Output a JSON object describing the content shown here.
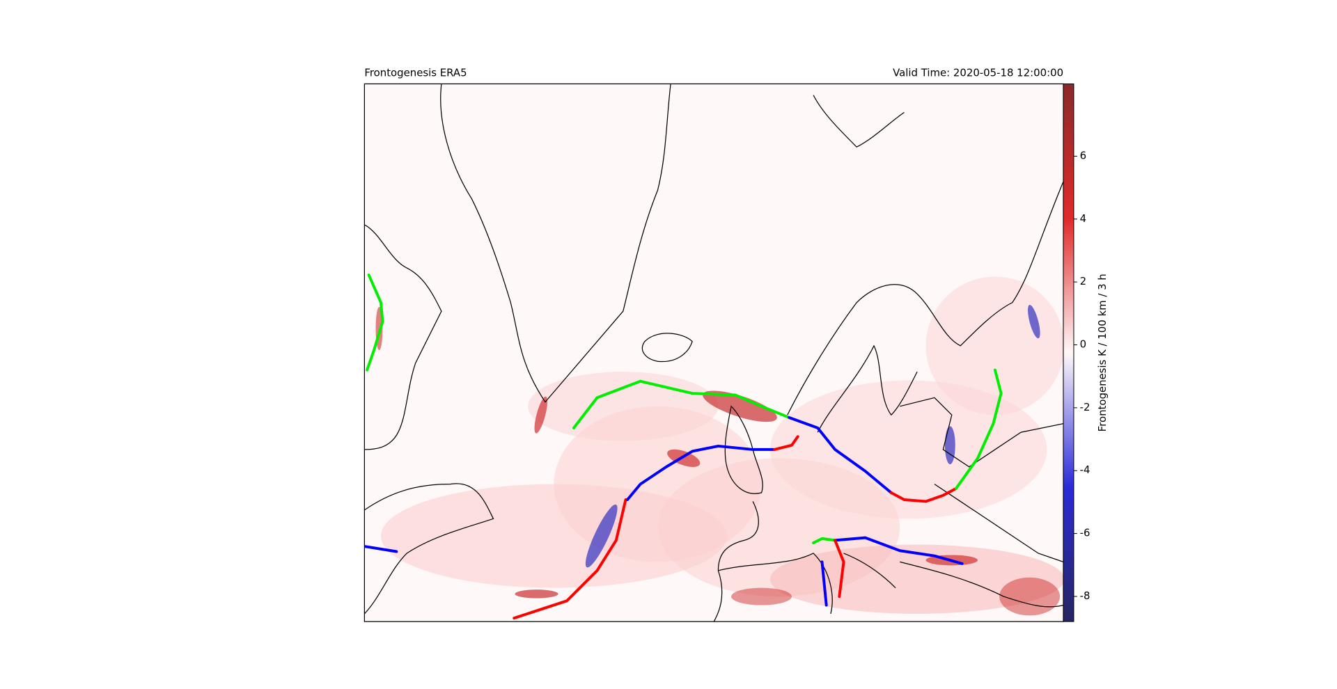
{
  "chart_data": {
    "type": "map",
    "title": "Frontogenesis ERA5",
    "subtitle": "Valid Time: 2020-05-18 12:00:00",
    "colorbar": {
      "label": "Frontogenesis K / 100 km / 3 h",
      "lim": [
        -8.8,
        8.3
      ],
      "ticks": [
        -8,
        -6,
        -4,
        -2,
        0,
        2,
        4,
        6
      ],
      "colors": [
        "#262660",
        "#2b2bd8",
        "#fff8f8",
        "#e02a2a",
        "#8a2a2a"
      ]
    }
  }
}
